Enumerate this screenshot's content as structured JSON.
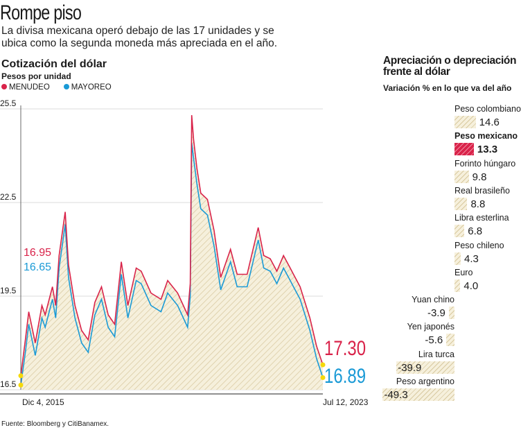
{
  "header": {
    "title": "Rompe piso",
    "subtitle": "La divisa mexicana operó debajo de las 17 unidades y se ubica como la segunda moneda más apreciada en el año."
  },
  "source": "Fuente: Bloomberg y CitiBanamex.",
  "colors": {
    "menudeo": "#d9234a",
    "mayoreo": "#1a9ad6",
    "hatch_bg": "#f6f0dc",
    "hatch_line": "#d8c9a0",
    "highlight": "#d9234a",
    "dot": "#f5d90a"
  },
  "chart_data": [
    {
      "type": "line",
      "title": "Cotización del dólar",
      "subtitle": "Pesos por unidad",
      "legend": [
        "MENUDEO",
        "MAYOREO"
      ],
      "legend_placement": "top-left",
      "ylim": [
        16.5,
        25.5
      ],
      "yticks": [
        "25.5",
        "22.5",
        "19.5",
        "16.5"
      ],
      "xlabels": [
        "Dic 4, 2015",
        "Jul 12, 2023"
      ],
      "xlim": [
        "2015-12-04",
        "2023-07-12"
      ],
      "grid": true,
      "start_labels": {
        "menudeo": "16.95",
        "mayoreo": "16.65"
      },
      "end_labels": {
        "menudeo": "17.30",
        "mayoreo": "16.89"
      },
      "series": [
        {
          "name": "MENUDEO",
          "points": [
            [
              "2015-12-04",
              16.95
            ],
            [
              "2016-01-15",
              18.1
            ],
            [
              "2016-02-15",
              19.0
            ],
            [
              "2016-04-15",
              18.0
            ],
            [
              "2016-06-15",
              19.2
            ],
            [
              "2016-07-15",
              18.9
            ],
            [
              "2016-09-20",
              19.8
            ],
            [
              "2016-10-20",
              19.2
            ],
            [
              "2016-11-20",
              20.8
            ],
            [
              "2017-01-15",
              22.2
            ],
            [
              "2017-02-15",
              20.5
            ],
            [
              "2017-04-15",
              19.2
            ],
            [
              "2017-06-15",
              18.4
            ],
            [
              "2017-08-15",
              18.1
            ],
            [
              "2017-10-15",
              19.3
            ],
            [
              "2017-12-15",
              19.8
            ],
            [
              "2018-02-15",
              18.9
            ],
            [
              "2018-04-15",
              18.6
            ],
            [
              "2018-06-15",
              20.6
            ],
            [
              "2018-08-15",
              19.2
            ],
            [
              "2018-10-30",
              20.4
            ],
            [
              "2018-12-15",
              20.3
            ],
            [
              "2019-03-15",
              19.6
            ],
            [
              "2019-06-15",
              19.4
            ],
            [
              "2019-08-15",
              20.0
            ],
            [
              "2019-11-15",
              19.6
            ],
            [
              "2020-02-15",
              18.9
            ],
            [
              "2020-03-10",
              19.9
            ],
            [
              "2020-03-23",
              25.3
            ],
            [
              "2020-04-10",
              24.5
            ],
            [
              "2020-05-10",
              23.6
            ],
            [
              "2020-06-15",
              22.8
            ],
            [
              "2020-08-15",
              22.6
            ],
            [
              "2020-10-15",
              21.6
            ],
            [
              "2020-12-15",
              20.1
            ],
            [
              "2021-03-15",
              21.0
            ],
            [
              "2021-05-15",
              20.2
            ],
            [
              "2021-08-15",
              20.2
            ],
            [
              "2021-11-25",
              21.7
            ],
            [
              "2022-01-15",
              20.8
            ],
            [
              "2022-03-15",
              20.7
            ],
            [
              "2022-05-15",
              20.3
            ],
            [
              "2022-07-15",
              20.8
            ],
            [
              "2022-09-15",
              20.4
            ],
            [
              "2022-10-15",
              20.2
            ],
            [
              "2022-12-15",
              19.8
            ],
            [
              "2023-03-15",
              18.8
            ],
            [
              "2023-05-15",
              17.9
            ],
            [
              "2023-07-12",
              17.3
            ]
          ]
        },
        {
          "name": "MAYOREO",
          "points": [
            [
              "2015-12-04",
              16.65
            ],
            [
              "2016-01-15",
              17.7
            ],
            [
              "2016-02-15",
              18.6
            ],
            [
              "2016-04-15",
              17.6
            ],
            [
              "2016-06-15",
              18.8
            ],
            [
              "2016-07-15",
              18.5
            ],
            [
              "2016-09-20",
              19.4
            ],
            [
              "2016-10-20",
              18.8
            ],
            [
              "2016-11-20",
              20.4
            ],
            [
              "2017-01-15",
              21.8
            ],
            [
              "2017-02-15",
              20.1
            ],
            [
              "2017-04-15",
              18.8
            ],
            [
              "2017-06-15",
              18.0
            ],
            [
              "2017-08-15",
              17.7
            ],
            [
              "2017-10-15",
              18.9
            ],
            [
              "2017-12-15",
              19.4
            ],
            [
              "2018-02-15",
              18.5
            ],
            [
              "2018-04-15",
              18.2
            ],
            [
              "2018-06-15",
              20.2
            ],
            [
              "2018-08-15",
              18.8
            ],
            [
              "2018-10-30",
              20.0
            ],
            [
              "2018-12-15",
              19.9
            ],
            [
              "2019-03-15",
              19.2
            ],
            [
              "2019-06-15",
              19.0
            ],
            [
              "2019-08-15",
              19.6
            ],
            [
              "2019-11-15",
              19.2
            ],
            [
              "2020-02-15",
              18.5
            ],
            [
              "2020-03-10",
              19.5
            ],
            [
              "2020-03-23",
              24.4
            ],
            [
              "2020-04-10",
              23.9
            ],
            [
              "2020-05-10",
              23.1
            ],
            [
              "2020-06-15",
              22.3
            ],
            [
              "2020-08-15",
              22.1
            ],
            [
              "2020-10-15",
              21.1
            ],
            [
              "2020-12-15",
              19.7
            ],
            [
              "2021-03-15",
              20.6
            ],
            [
              "2021-05-15",
              19.8
            ],
            [
              "2021-08-15",
              19.8
            ],
            [
              "2021-11-25",
              21.3
            ],
            [
              "2022-01-15",
              20.4
            ],
            [
              "2022-03-15",
              20.3
            ],
            [
              "2022-05-15",
              19.9
            ],
            [
              "2022-07-15",
              20.4
            ],
            [
              "2022-09-15",
              20.0
            ],
            [
              "2022-10-15",
              19.8
            ],
            [
              "2022-12-15",
              19.4
            ],
            [
              "2023-03-15",
              18.4
            ],
            [
              "2023-05-15",
              17.5
            ],
            [
              "2023-07-12",
              16.89
            ]
          ]
        }
      ]
    },
    {
      "type": "bar",
      "orientation": "horizontal",
      "title": "Apreciación o  depreciación frente al dólar",
      "subtitle": "Variación % en lo que va del año",
      "categories": [
        "Peso colombiano",
        "Peso mexicano",
        "Forinto húngaro",
        "Real brasileño",
        "Libra esterlina",
        "Peso chileno",
        "Euro",
        "Yuan chino",
        "Yen japonés",
        "Lira turca",
        "Peso argentino"
      ],
      "labels": [
        "14.6",
        "13.3",
        "9.8",
        "8.8",
        "6.8",
        "4.3",
        "4.0",
        "-3.9",
        "-5.6",
        "-39.9",
        "-49.3"
      ],
      "values": [
        14.6,
        13.3,
        9.8,
        8.8,
        6.8,
        4.3,
        4.0,
        -3.9,
        -5.6,
        -39.9,
        -49.3
      ],
      "highlight": "Peso mexicano"
    }
  ]
}
